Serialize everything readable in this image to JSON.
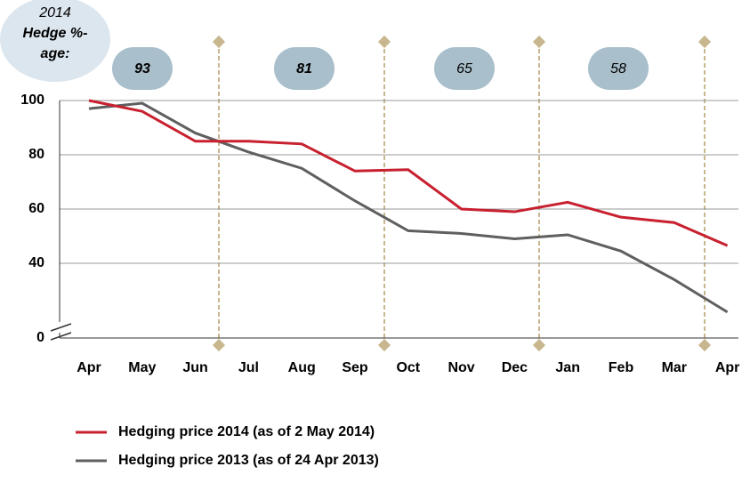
{
  "chart_data": {
    "type": "line",
    "categories": [
      "Apr",
      "May",
      "Jun",
      "Jul",
      "Aug",
      "Sep",
      "Oct",
      "Nov",
      "Dec",
      "Jan",
      "Feb",
      "Mar",
      "Apr"
    ],
    "series": [
      {
        "name": "Hedging price 2014 (as of 2 May 2014)",
        "color": "#c8202f",
        "values": [
          100,
          96,
          85,
          85,
          84,
          74,
          74.5,
          60,
          59,
          62.5,
          57,
          55,
          46.5
        ]
      },
      {
        "name": "Hedging price 2013 (as of 24 Apr 2013)",
        "color": "#5f5f5f",
        "values": [
          97,
          99,
          88,
          81,
          75,
          63,
          52,
          51,
          49,
          50.5,
          44.5,
          34,
          22
        ]
      }
    ],
    "ylim": [
      0,
      100
    ],
    "yticks": [
      0,
      40,
      60,
      80,
      100
    ],
    "grid": true,
    "axis_break": true,
    "hedge_label": [
      "2014",
      "Hedge %-",
      "age:"
    ],
    "hedge_percentages": [
      {
        "value": 93,
        "bold": true
      },
      {
        "value": 81,
        "bold": true
      },
      {
        "value": 65,
        "bold": false
      },
      {
        "value": 58,
        "bold": false
      }
    ]
  }
}
